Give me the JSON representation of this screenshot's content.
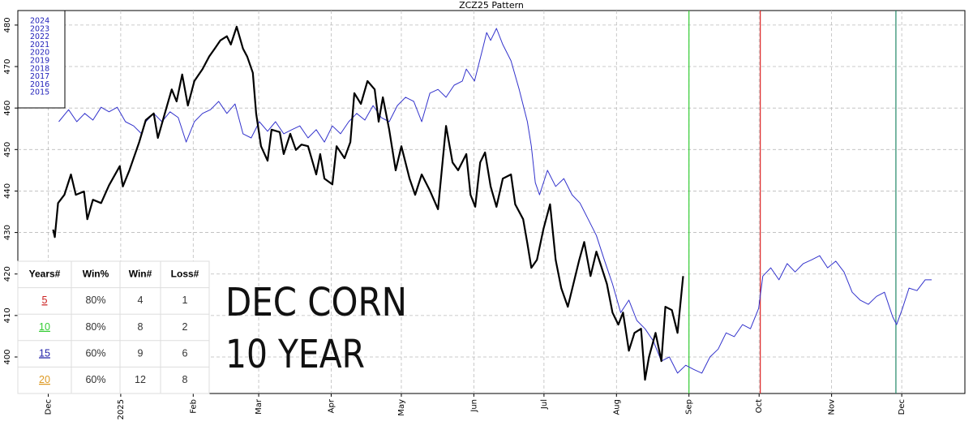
{
  "chart_data": {
    "type": "line",
    "title": "ZCZ25  Pattern",
    "xlim": [
      -13,
      392
    ],
    "xticks": [
      {
        "value": 0,
        "label": "Dec"
      },
      {
        "value": 31,
        "label": "2025"
      },
      {
        "value": 62,
        "label": "Feb"
      },
      {
        "value": 90,
        "label": "Mar"
      },
      {
        "value": 121,
        "label": "Apr"
      },
      {
        "value": 151,
        "label": "May"
      },
      {
        "value": 182,
        "label": "Jun"
      },
      {
        "value": 212,
        "label": "Jul"
      },
      {
        "value": 243,
        "label": "Aug"
      },
      {
        "value": 274,
        "label": "Sep"
      },
      {
        "value": 304,
        "label": "Oct"
      },
      {
        "value": 335,
        "label": "Nov"
      },
      {
        "value": 365,
        "label": "Dec"
      }
    ],
    "ylim": [
      391.2,
      483.5
    ],
    "yticks": [
      400,
      410,
      420,
      430,
      440,
      450,
      460,
      470,
      480
    ],
    "grid": true,
    "legend_labels": [
      "2024",
      "2023",
      "2022",
      "2021",
      "2020",
      "2019",
      "2018",
      "2017",
      "2016",
      "2015"
    ],
    "legend_color": "#2222bb",
    "vlines": [
      {
        "x": 274,
        "color": "#33cc33"
      },
      {
        "x": 304.5,
        "color": "#dd2222"
      },
      {
        "x": 362.5,
        "color": "#228866"
      }
    ],
    "annotation": [
      "DEC CORN",
      "10 YEAR"
    ],
    "series": [
      {
        "color": "#3333cc",
        "width": 1,
        "x": [
          4.5,
          8.7,
          12.2,
          15.6,
          19.1,
          22.6,
          26.0,
          29.5,
          33.0,
          36.5,
          39.9,
          41.7,
          45.1,
          48.6,
          52.1,
          55.6,
          59.0,
          62.5,
          66.0,
          69.4,
          72.9,
          76.4,
          79.9,
          83.3,
          86.8,
          90.3,
          93.8,
          97.2,
          100.7,
          104.2,
          107.6,
          111.1,
          114.6,
          118.1,
          121.5,
          125.0,
          128.5,
          131.9,
          135.4,
          138.9,
          142.4,
          145.8,
          149.3,
          152.8,
          156.3,
          159.7,
          163.2,
          166.7,
          170.1,
          173.6,
          177.1,
          178.8,
          182.3,
          185.8,
          187.5,
          189.2,
          191.7,
          194.4,
          197.9,
          201.4,
          204.9,
          206.6,
          208.3,
          210.1,
          213.5,
          217.0,
          220.5,
          224.0,
          227.4,
          230.9,
          234.4,
          237.8,
          241.3,
          244.8,
          248.3,
          251.7,
          255.2,
          258.7,
          262.2,
          265.6,
          269.1,
          272.6,
          276.0,
          279.5,
          283.0,
          286.5,
          289.9,
          293.4,
          296.9,
          300.3,
          303.8,
          305.6,
          309.0,
          312.5,
          316.0,
          319.4,
          322.9,
          326.4,
          329.9,
          333.3,
          336.8,
          340.3,
          343.8,
          347.2,
          350.7,
          354.2,
          357.6,
          361.1,
          362.8,
          365.3,
          368.1,
          371.5,
          375.0,
          377.8
        ],
        "values": [
          456.7,
          459.6,
          456.7,
          458.7,
          457.1,
          460.2,
          459.1,
          460.2,
          456.7,
          455.7,
          453.8,
          456.7,
          458.7,
          456.7,
          459.1,
          457.7,
          451.8,
          456.7,
          458.7,
          459.6,
          461.6,
          458.7,
          461.0,
          453.8,
          452.8,
          456.7,
          454.4,
          456.7,
          453.8,
          454.8,
          455.7,
          452.8,
          454.8,
          451.8,
          455.7,
          453.8,
          456.7,
          458.7,
          457.1,
          460.6,
          457.7,
          456.7,
          460.6,
          462.6,
          461.6,
          456.7,
          463.6,
          464.5,
          462.6,
          465.5,
          466.5,
          469.4,
          466.5,
          474.3,
          478.2,
          476.3,
          479.2,
          475.3,
          471.4,
          464.5,
          456.7,
          450.8,
          442.0,
          439.1,
          445.0,
          441.1,
          443.0,
          439.1,
          437.1,
          433.2,
          429.3,
          423.4,
          417.6,
          410.7,
          413.7,
          408.8,
          406.8,
          403.9,
          399.0,
          400.0,
          396.1,
          398.0,
          397.0,
          396.1,
          400.0,
          401.9,
          405.8,
          404.9,
          407.8,
          406.8,
          411.7,
          419.5,
          421.5,
          418.6,
          422.5,
          420.5,
          422.5,
          423.4,
          424.4,
          421.5,
          423.1,
          420.5,
          415.6,
          413.7,
          412.7,
          414.6,
          415.6,
          409.7,
          407.8,
          411.7,
          416.6,
          416.0,
          418.6,
          418.6
        ]
      },
      {
        "color": "#000000",
        "width": 2.2,
        "x": [
          2.1,
          2.8,
          4.2,
          6.9,
          9.7,
          11.8,
          15.3,
          16.7,
          19.1,
          22.6,
          26.0,
          30.6,
          31.9,
          34.7,
          38.9,
          41.7,
          45.1,
          46.9,
          50.3,
          52.8,
          54.9,
          57.3,
          59.7,
          62.5,
          66.0,
          68.8,
          71.2,
          73.6,
          76.4,
          78.1,
          80.6,
          83.3,
          85.1,
          87.5,
          88.9,
          91.0,
          93.8,
          95.5,
          99.0,
          100.7,
          103.5,
          105.9,
          108.3,
          111.1,
          114.6,
          116.3,
          118.1,
          121.5,
          123.3,
          126.7,
          129.2,
          130.9,
          133.7,
          136.5,
          139.6,
          141.3,
          143.1,
          145.8,
          148.6,
          151.0,
          154.5,
          156.9,
          159.7,
          163.2,
          166.7,
          170.1,
          172.9,
          175.3,
          178.8,
          180.6,
          182.6,
          184.7,
          186.8,
          189.2,
          191.7,
          194.4,
          197.9,
          199.7,
          203.1,
          204.9,
          206.6,
          209.0,
          211.8,
          214.6,
          217.0,
          219.4,
          222.2,
          225.0,
          227.1,
          229.2,
          231.9,
          234.4,
          236.1,
          238.9,
          241.3,
          243.8,
          245.8,
          248.3,
          250.7,
          253.5,
          255.2,
          256.9,
          259.7,
          262.2,
          263.9,
          266.7,
          269.1,
          271.5
        ],
        "values": [
          430.7,
          428.9,
          437.1,
          439.1,
          444.0,
          439.1,
          439.9,
          433.2,
          437.9,
          437.1,
          441.4,
          446.0,
          441.1,
          445.0,
          451.8,
          457.1,
          458.7,
          452.8,
          459.6,
          464.5,
          461.6,
          468.1,
          460.6,
          466.5,
          469.4,
          472.4,
          474.3,
          476.3,
          477.3,
          475.3,
          479.6,
          474.3,
          472.4,
          468.5,
          458.7,
          450.8,
          447.3,
          454.8,
          454.2,
          448.9,
          453.8,
          449.9,
          451.2,
          450.8,
          444.0,
          448.9,
          443.0,
          441.6,
          450.8,
          447.9,
          451.8,
          463.6,
          461.0,
          466.5,
          464.5,
          456.7,
          462.6,
          454.8,
          445.0,
          450.8,
          443.0,
          439.1,
          444.0,
          440.1,
          435.6,
          455.7,
          446.9,
          445.0,
          448.9,
          439.1,
          436.2,
          446.9,
          449.3,
          441.1,
          436.2,
          443.0,
          444.0,
          436.8,
          433.2,
          427.4,
          421.5,
          423.4,
          430.9,
          436.8,
          423.4,
          416.6,
          412.1,
          418.6,
          423.4,
          427.7,
          419.5,
          425.4,
          422.5,
          417.6,
          410.7,
          407.8,
          410.7,
          401.5,
          405.8,
          406.8,
          394.5,
          400.0,
          405.8,
          399.0,
          412.1,
          411.3,
          405.8,
          419.5
        ]
      }
    ]
  },
  "table": {
    "header": [
      "Years#",
      "Win%",
      "Win#",
      "Loss#"
    ],
    "rows": [
      [
        "5",
        "80%",
        "4",
        "1"
      ],
      [
        "10",
        "80%",
        "8",
        "2"
      ],
      [
        "15",
        "60%",
        "9",
        "6"
      ],
      [
        "20",
        "60%",
        "12",
        "8"
      ]
    ],
    "year_colors": [
      "#cc2222",
      "#33cc33",
      "#2222aa",
      "#dd9922"
    ]
  }
}
